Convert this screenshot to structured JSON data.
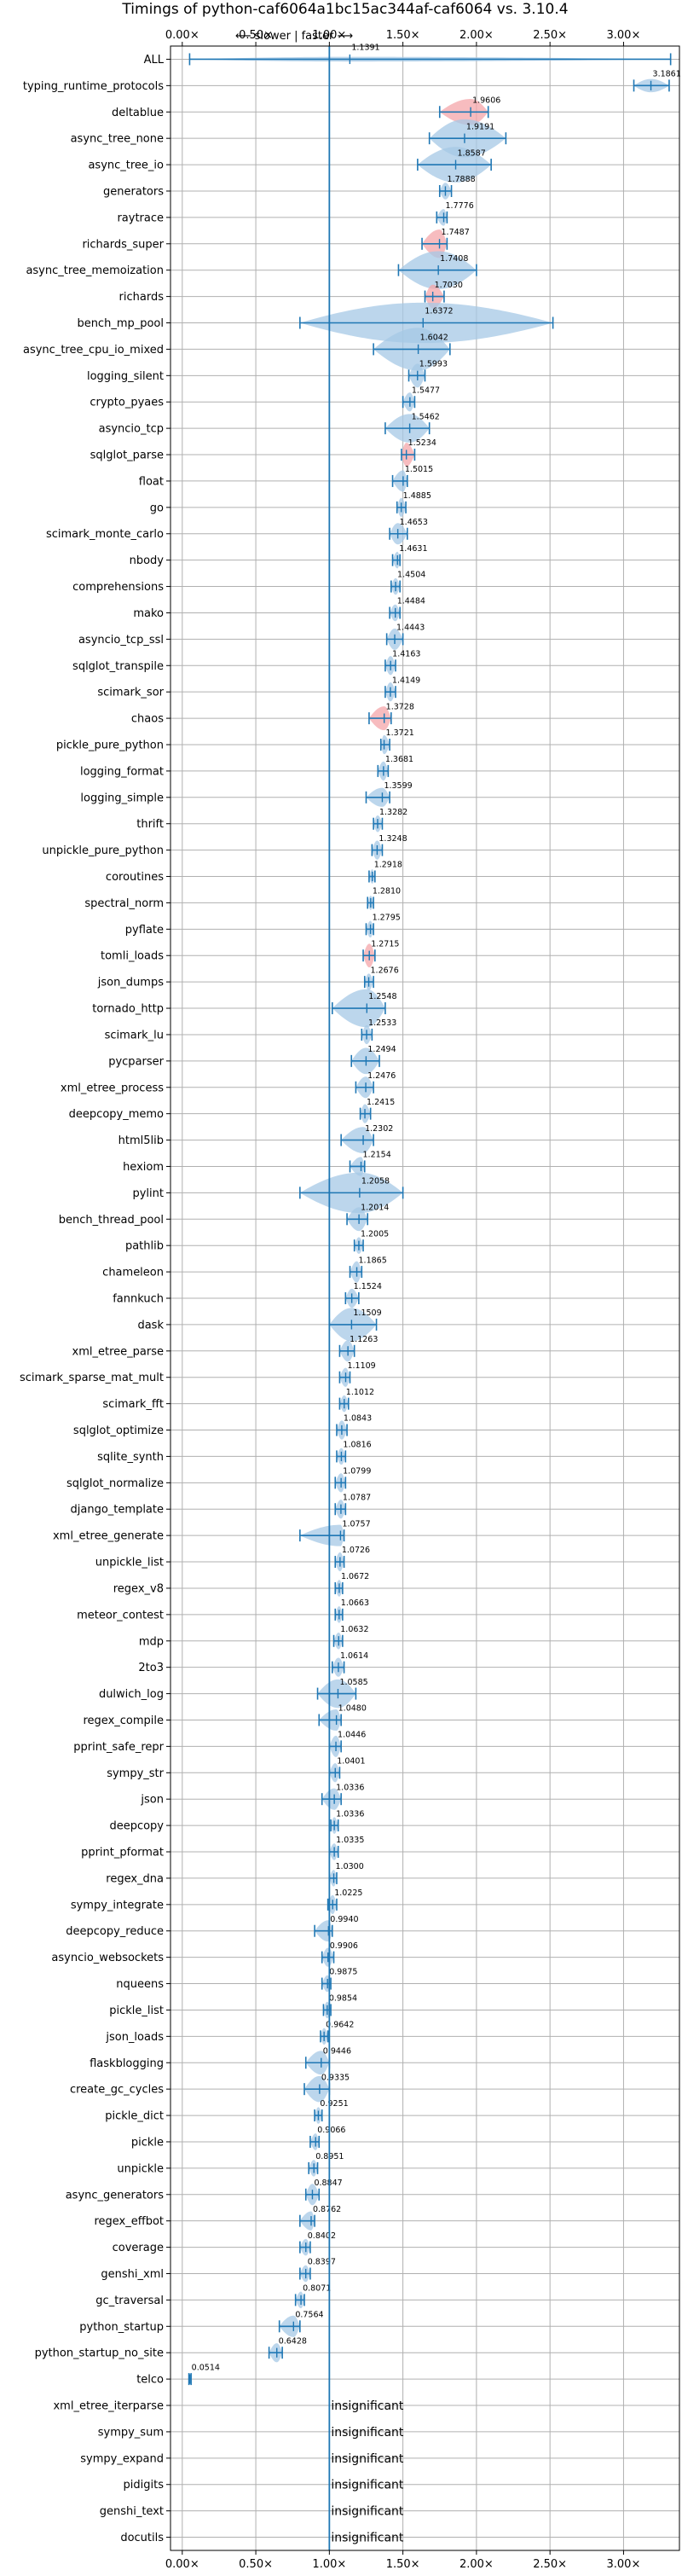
{
  "chart_data": {
    "type": "violin",
    "title": "Timings of python-caf6064a1bc15ac344af-caf6064 vs. 3.10.4",
    "direction_label": "⟵ slower | faster ⟶",
    "xlim": [
      -0.08,
      3.38
    ],
    "xticks": [
      "0.00×",
      "0.50×",
      "1.00×",
      "1.50×",
      "2.00×",
      "2.50×",
      "3.00×"
    ],
    "xtick_values": [
      0,
      0.5,
      1.0,
      1.5,
      2.0,
      2.5,
      3.0
    ],
    "reference_line": 1.0,
    "grid": true,
    "insignificant_text": "insignificant",
    "benchmarks": [
      {
        "name": "ALL",
        "median": 1.1391,
        "label": "1.1391",
        "lo": 0.05,
        "hi": 3.32,
        "width": 0.1,
        "red": false
      },
      {
        "name": "typing_runtime_protocols",
        "median": 3.1861,
        "label": "3.1861",
        "lo": 3.07,
        "hi": 3.31,
        "width": 0.28,
        "red": false
      },
      {
        "name": "deltablue",
        "median": 1.9606,
        "label": "1.9606",
        "lo": 1.75,
        "hi": 2.08,
        "width": 0.55,
        "red": true
      },
      {
        "name": "async_tree_none",
        "median": 1.9191,
        "label": "1.9191",
        "lo": 1.68,
        "hi": 2.2,
        "width": 0.8,
        "red": false
      },
      {
        "name": "async_tree_io",
        "median": 1.8587,
        "label": "1.8587",
        "lo": 1.6,
        "hi": 2.1,
        "width": 0.75,
        "red": false
      },
      {
        "name": "generators",
        "median": 1.7888,
        "label": "1.7888",
        "lo": 1.75,
        "hi": 1.83,
        "width": 0.35,
        "red": false
      },
      {
        "name": "raytrace",
        "median": 1.7776,
        "label": "1.7776",
        "lo": 1.73,
        "hi": 1.8,
        "width": 0.35,
        "red": false
      },
      {
        "name": "richards_super",
        "median": 1.7487,
        "label": "1.7487",
        "lo": 1.63,
        "hi": 1.8,
        "width": 0.6,
        "red": true
      },
      {
        "name": "async_tree_memoization",
        "median": 1.7408,
        "label": "1.7408",
        "lo": 1.47,
        "hi": 2.0,
        "width": 0.8,
        "red": false
      },
      {
        "name": "richards",
        "median": 1.703,
        "label": "1.7030",
        "lo": 1.65,
        "hi": 1.78,
        "width": 0.5,
        "red": true
      },
      {
        "name": "bench_mp_pool",
        "median": 1.6372,
        "label": "1.6372",
        "lo": 0.8,
        "hi": 2.52,
        "width": 0.85,
        "red": false
      },
      {
        "name": "async_tree_cpu_io_mixed",
        "median": 1.6042,
        "label": "1.6042",
        "lo": 1.3,
        "hi": 1.82,
        "width": 0.9,
        "red": false
      },
      {
        "name": "logging_silent",
        "median": 1.5993,
        "label": "1.5993",
        "lo": 1.54,
        "hi": 1.65,
        "width": 0.5,
        "red": false
      },
      {
        "name": "crypto_pyaes",
        "median": 1.5477,
        "label": "1.5477",
        "lo": 1.5,
        "hi": 1.58,
        "width": 0.4,
        "red": false
      },
      {
        "name": "asyncio_tcp",
        "median": 1.5462,
        "label": "1.5462",
        "lo": 1.38,
        "hi": 1.68,
        "width": 0.6,
        "red": false
      },
      {
        "name": "sqlglot_parse",
        "median": 1.5234,
        "label": "1.5234",
        "lo": 1.49,
        "hi": 1.58,
        "width": 0.5,
        "red": true
      },
      {
        "name": "float",
        "median": 1.5015,
        "label": "1.5015",
        "lo": 1.43,
        "hi": 1.53,
        "width": 0.45,
        "red": false
      },
      {
        "name": "go",
        "median": 1.4885,
        "label": "1.4885",
        "lo": 1.46,
        "hi": 1.52,
        "width": 0.4,
        "red": false
      },
      {
        "name": "scimark_monte_carlo",
        "median": 1.4653,
        "label": "1.4653",
        "lo": 1.41,
        "hi": 1.53,
        "width": 0.45,
        "red": false
      },
      {
        "name": "nbody",
        "median": 1.4631,
        "label": "1.4631",
        "lo": 1.43,
        "hi": 1.48,
        "width": 0.35,
        "red": false
      },
      {
        "name": "comprehensions",
        "median": 1.4504,
        "label": "1.4504",
        "lo": 1.42,
        "hi": 1.48,
        "width": 0.35,
        "red": false
      },
      {
        "name": "mako",
        "median": 1.4484,
        "label": "1.4484",
        "lo": 1.41,
        "hi": 1.48,
        "width": 0.35,
        "red": false
      },
      {
        "name": "asyncio_tcp_ssl",
        "median": 1.4443,
        "label": "1.4443",
        "lo": 1.39,
        "hi": 1.5,
        "width": 0.45,
        "red": false
      },
      {
        "name": "sqlglot_transpile",
        "median": 1.4163,
        "label": "1.4163",
        "lo": 1.38,
        "hi": 1.45,
        "width": 0.4,
        "red": false
      },
      {
        "name": "scimark_sor",
        "median": 1.4149,
        "label": "1.4149",
        "lo": 1.38,
        "hi": 1.45,
        "width": 0.4,
        "red": false
      },
      {
        "name": "chaos",
        "median": 1.3728,
        "label": "1.3728",
        "lo": 1.27,
        "hi": 1.42,
        "width": 0.5,
        "red": true
      },
      {
        "name": "pickle_pure_python",
        "median": 1.3721,
        "label": "1.3721",
        "lo": 1.35,
        "hi": 1.41,
        "width": 0.4,
        "red": false
      },
      {
        "name": "logging_format",
        "median": 1.3681,
        "label": "1.3681",
        "lo": 1.33,
        "hi": 1.4,
        "width": 0.4,
        "red": false
      },
      {
        "name": "logging_simple",
        "median": 1.3599,
        "label": "1.3599",
        "lo": 1.25,
        "hi": 1.41,
        "width": 0.4,
        "red": false
      },
      {
        "name": "thrift",
        "median": 1.3282,
        "label": "1.3282",
        "lo": 1.3,
        "hi": 1.36,
        "width": 0.35,
        "red": false
      },
      {
        "name": "unpickle_pure_python",
        "median": 1.3248,
        "label": "1.3248",
        "lo": 1.29,
        "hi": 1.36,
        "width": 0.4,
        "red": false
      },
      {
        "name": "coroutines",
        "median": 1.2918,
        "label": "1.2918",
        "lo": 1.27,
        "hi": 1.31,
        "width": 0.3,
        "red": false
      },
      {
        "name": "spectral_norm",
        "median": 1.281,
        "label": "1.2810",
        "lo": 1.26,
        "hi": 1.3,
        "width": 0.3,
        "red": false
      },
      {
        "name": "pyflate",
        "median": 1.2795,
        "label": "1.2795",
        "lo": 1.25,
        "hi": 1.3,
        "width": 0.35,
        "red": false
      },
      {
        "name": "tomli_loads",
        "median": 1.2715,
        "label": "1.2715",
        "lo": 1.23,
        "hi": 1.31,
        "width": 0.5,
        "red": true
      },
      {
        "name": "json_dumps",
        "median": 1.2676,
        "label": "1.2676",
        "lo": 1.24,
        "hi": 1.3,
        "width": 0.35,
        "red": false
      },
      {
        "name": "tornado_http",
        "median": 1.2548,
        "label": "1.2548",
        "lo": 1.02,
        "hi": 1.38,
        "width": 0.8,
        "red": false
      },
      {
        "name": "scimark_lu",
        "median": 1.2533,
        "label": "1.2533",
        "lo": 1.22,
        "hi": 1.29,
        "width": 0.4,
        "red": false
      },
      {
        "name": "pycparser",
        "median": 1.2494,
        "label": "1.2494",
        "lo": 1.15,
        "hi": 1.34,
        "width": 0.55,
        "red": false
      },
      {
        "name": "xml_etree_process",
        "median": 1.2476,
        "label": "1.2476",
        "lo": 1.18,
        "hi": 1.3,
        "width": 0.45,
        "red": false
      },
      {
        "name": "deepcopy_memo",
        "median": 1.2415,
        "label": "1.2415",
        "lo": 1.21,
        "hi": 1.28,
        "width": 0.4,
        "red": false
      },
      {
        "name": "html5lib",
        "median": 1.2302,
        "label": "1.2302",
        "lo": 1.08,
        "hi": 1.3,
        "width": 0.55,
        "red": false
      },
      {
        "name": "hexiom",
        "median": 1.2154,
        "label": "1.2154",
        "lo": 1.14,
        "hi": 1.24,
        "width": 0.4,
        "red": false
      },
      {
        "name": "pylint",
        "median": 1.2058,
        "label": "1.2058",
        "lo": 0.8,
        "hi": 1.5,
        "width": 0.85,
        "red": false
      },
      {
        "name": "bench_thread_pool",
        "median": 1.2014,
        "label": "1.2014",
        "lo": 1.12,
        "hi": 1.26,
        "width": 0.5,
        "red": false
      },
      {
        "name": "pathlib",
        "median": 1.2005,
        "label": "1.2005",
        "lo": 1.17,
        "hi": 1.23,
        "width": 0.35,
        "red": false
      },
      {
        "name": "chameleon",
        "median": 1.1865,
        "label": "1.1865",
        "lo": 1.14,
        "hi": 1.22,
        "width": 0.45,
        "red": false
      },
      {
        "name": "fannkuch",
        "median": 1.1524,
        "label": "1.1524",
        "lo": 1.11,
        "hi": 1.2,
        "width": 0.4,
        "red": false
      },
      {
        "name": "dask",
        "median": 1.1509,
        "label": "1.1509",
        "lo": 1.0,
        "hi": 1.32,
        "width": 0.7,
        "red": false
      },
      {
        "name": "xml_etree_parse",
        "median": 1.1263,
        "label": "1.1263",
        "lo": 1.07,
        "hi": 1.17,
        "width": 0.45,
        "red": false
      },
      {
        "name": "scimark_sparse_mat_mult",
        "median": 1.1109,
        "label": "1.1109",
        "lo": 1.07,
        "hi": 1.14,
        "width": 0.4,
        "red": false
      },
      {
        "name": "scimark_fft",
        "median": 1.1012,
        "label": "1.1012",
        "lo": 1.07,
        "hi": 1.13,
        "width": 0.35,
        "red": false
      },
      {
        "name": "sqlglot_optimize",
        "median": 1.0843,
        "label": "1.0843",
        "lo": 1.05,
        "hi": 1.12,
        "width": 0.4,
        "red": false
      },
      {
        "name": "sqlite_synth",
        "median": 1.0816,
        "label": "1.0816",
        "lo": 1.05,
        "hi": 1.11,
        "width": 0.35,
        "red": false
      },
      {
        "name": "sqlglot_normalize",
        "median": 1.0799,
        "label": "1.0799",
        "lo": 1.04,
        "hi": 1.11,
        "width": 0.4,
        "red": false
      },
      {
        "name": "django_template",
        "median": 1.0787,
        "label": "1.0787",
        "lo": 1.04,
        "hi": 1.11,
        "width": 0.4,
        "red": false
      },
      {
        "name": "xml_etree_generate",
        "median": 1.0757,
        "label": "1.0757",
        "lo": 0.8,
        "hi": 1.1,
        "width": 0.45,
        "red": false
      },
      {
        "name": "unpickle_list",
        "median": 1.0726,
        "label": "1.0726",
        "lo": 1.04,
        "hi": 1.1,
        "width": 0.4,
        "red": false
      },
      {
        "name": "regex_v8",
        "median": 1.0672,
        "label": "1.0672",
        "lo": 1.04,
        "hi": 1.09,
        "width": 0.35,
        "red": false
      },
      {
        "name": "meteor_contest",
        "median": 1.0663,
        "label": "1.0663",
        "lo": 1.04,
        "hi": 1.09,
        "width": 0.35,
        "red": false
      },
      {
        "name": "mdp",
        "median": 1.0632,
        "label": "1.0632",
        "lo": 1.03,
        "hi": 1.09,
        "width": 0.35,
        "red": false
      },
      {
        "name": "2to3",
        "median": 1.0614,
        "label": "1.0614",
        "lo": 1.02,
        "hi": 1.1,
        "width": 0.4,
        "red": false
      },
      {
        "name": "dulwich_log",
        "median": 1.0585,
        "label": "1.0585",
        "lo": 0.92,
        "hi": 1.18,
        "width": 0.6,
        "red": false
      },
      {
        "name": "regex_compile",
        "median": 1.048,
        "label": "1.0480",
        "lo": 0.93,
        "hi": 1.08,
        "width": 0.45,
        "red": false
      },
      {
        "name": "pprint_safe_repr",
        "median": 1.0446,
        "label": "1.0446",
        "lo": 1.0,
        "hi": 1.08,
        "width": 0.45,
        "red": false
      },
      {
        "name": "sympy_str",
        "median": 1.0401,
        "label": "1.0401",
        "lo": 1.0,
        "hi": 1.07,
        "width": 0.4,
        "red": false
      },
      {
        "name": "json",
        "median": 1.0336,
        "label": "1.0336",
        "lo": 0.95,
        "hi": 1.08,
        "width": 0.45,
        "red": false
      },
      {
        "name": "deepcopy",
        "median": 1.0336,
        "label": "1.0336",
        "lo": 1.01,
        "hi": 1.06,
        "width": 0.35,
        "red": false
      },
      {
        "name": "pprint_pformat",
        "median": 1.0335,
        "label": "1.0335",
        "lo": 1.0,
        "hi": 1.06,
        "width": 0.35,
        "red": false
      },
      {
        "name": "regex_dna",
        "median": 1.03,
        "label": "1.0300",
        "lo": 1.0,
        "hi": 1.05,
        "width": 0.35,
        "red": false
      },
      {
        "name": "sympy_integrate",
        "median": 1.0225,
        "label": "1.0225",
        "lo": 0.99,
        "hi": 1.05,
        "width": 0.4,
        "red": false
      },
      {
        "name": "deepcopy_reduce",
        "median": 0.994,
        "label": "0.9940",
        "lo": 0.9,
        "hi": 1.02,
        "width": 0.45,
        "red": false
      },
      {
        "name": "asyncio_websockets",
        "median": 0.9906,
        "label": "0.9906",
        "lo": 0.95,
        "hi": 1.03,
        "width": 0.4,
        "red": false
      },
      {
        "name": "nqueens",
        "median": 0.9875,
        "label": "0.9875",
        "lo": 0.95,
        "hi": 1.01,
        "width": 0.35,
        "red": false
      },
      {
        "name": "pickle_list",
        "median": 0.9854,
        "label": "0.9854",
        "lo": 0.96,
        "hi": 1.01,
        "width": 0.35,
        "red": false
      },
      {
        "name": "json_loads",
        "median": 0.9642,
        "label": "0.9642",
        "lo": 0.94,
        "hi": 0.99,
        "width": 0.35,
        "red": false
      },
      {
        "name": "flaskblogging",
        "median": 0.9446,
        "label": "0.9446",
        "lo": 0.84,
        "hi": 1.0,
        "width": 0.5,
        "red": false
      },
      {
        "name": "create_gc_cycles",
        "median": 0.9335,
        "label": "0.9335",
        "lo": 0.83,
        "hi": 1.0,
        "width": 0.55,
        "red": false
      },
      {
        "name": "pickle_dict",
        "median": 0.9251,
        "label": "0.9251",
        "lo": 0.9,
        "hi": 0.95,
        "width": 0.35,
        "red": false
      },
      {
        "name": "pickle",
        "median": 0.9066,
        "label": "0.9066",
        "lo": 0.87,
        "hi": 0.93,
        "width": 0.35,
        "red": false
      },
      {
        "name": "unpickle",
        "median": 0.8951,
        "label": "0.8951",
        "lo": 0.86,
        "hi": 0.92,
        "width": 0.35,
        "red": false
      },
      {
        "name": "async_generators",
        "median": 0.8847,
        "label": "0.8847",
        "lo": 0.84,
        "hi": 0.93,
        "width": 0.45,
        "red": false
      },
      {
        "name": "regex_effbot",
        "median": 0.8762,
        "label": "0.8762",
        "lo": 0.8,
        "hi": 0.9,
        "width": 0.4,
        "red": false
      },
      {
        "name": "coverage",
        "median": 0.8402,
        "label": "0.8402",
        "lo": 0.8,
        "hi": 0.87,
        "width": 0.35,
        "red": false
      },
      {
        "name": "genshi_xml",
        "median": 0.8397,
        "label": "0.8397",
        "lo": 0.8,
        "hi": 0.87,
        "width": 0.35,
        "red": false
      },
      {
        "name": "gc_traversal",
        "median": 0.8071,
        "label": "0.8071",
        "lo": 0.77,
        "hi": 0.83,
        "width": 0.35,
        "red": false
      },
      {
        "name": "python_startup",
        "median": 0.7564,
        "label": "0.7564",
        "lo": 0.66,
        "hi": 0.8,
        "width": 0.45,
        "red": false
      },
      {
        "name": "python_startup_no_site",
        "median": 0.6428,
        "label": "0.6428",
        "lo": 0.59,
        "hi": 0.68,
        "width": 0.4,
        "red": false
      },
      {
        "name": "telco",
        "median": 0.0514,
        "label": "0.0514",
        "lo": 0.045,
        "hi": 0.06,
        "width": 0.25,
        "red": false
      },
      {
        "name": "xml_etree_iterparse",
        "median": null,
        "insignificant": true
      },
      {
        "name": "sympy_sum",
        "median": null,
        "insignificant": true
      },
      {
        "name": "sympy_expand",
        "median": null,
        "insignificant": true
      },
      {
        "name": "pidigits",
        "median": null,
        "insignificant": true
      },
      {
        "name": "genshi_text",
        "median": null,
        "insignificant": true
      },
      {
        "name": "docutils",
        "median": null,
        "insignificant": true
      }
    ]
  },
  "colors": {
    "violin_blue": "#1f77b4",
    "violin_fill": "#a6c8e6",
    "violin_red_fill": "#f4a6aa",
    "grid": "#b0b0b0",
    "axis": "#000000"
  }
}
